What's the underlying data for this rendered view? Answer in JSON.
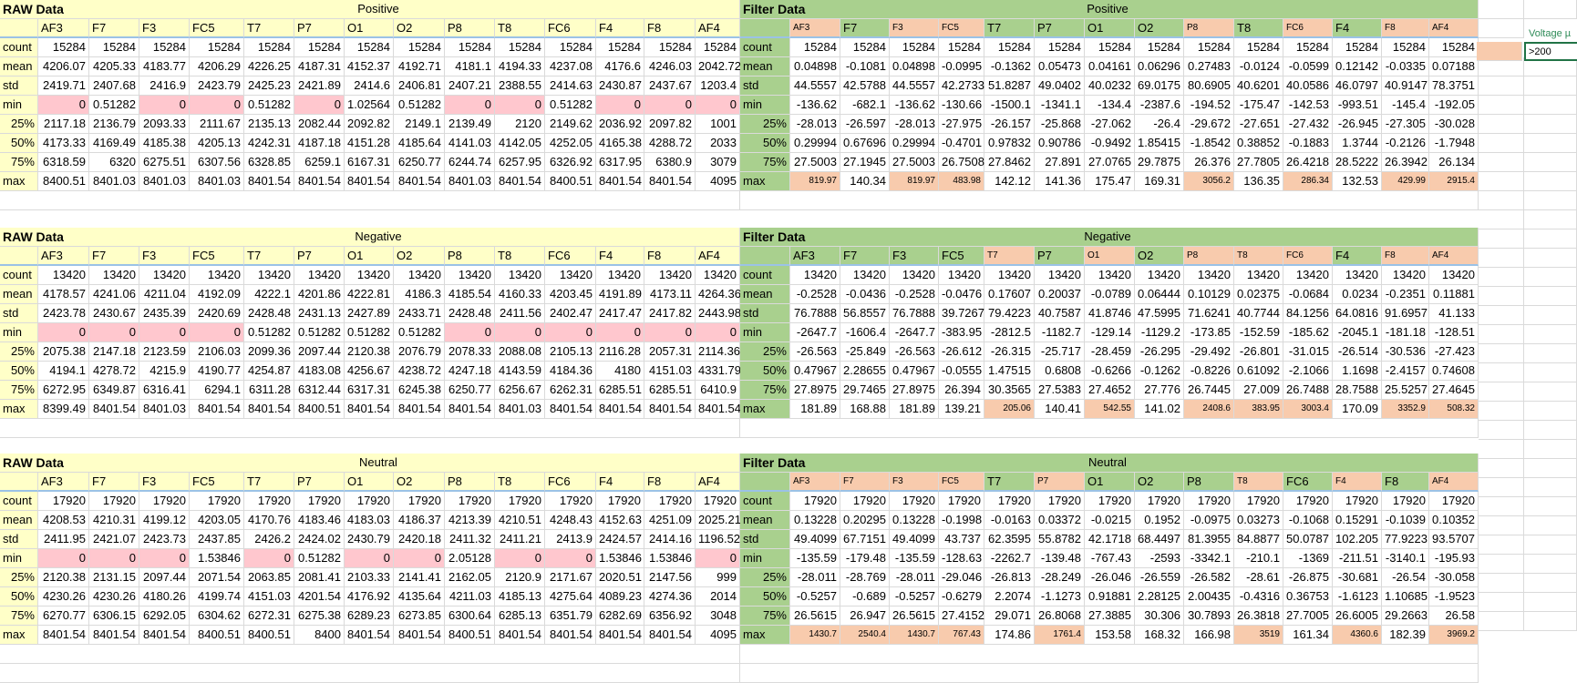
{
  "side_note": {
    "voltage_label": "Voltage µ",
    "voltage_value": ">200"
  },
  "stat_labels": [
    "count",
    "mean",
    "std",
    "min",
    "25%",
    "50%",
    "75%",
    "max"
  ],
  "channels": [
    "AF3",
    "F7",
    "F3",
    "FC5",
    "T7",
    "P7",
    "O1",
    "O2",
    "P8",
    "T8",
    "FC6",
    "F4",
    "F8",
    "AF4"
  ],
  "blocks": [
    {
      "name": "Positive",
      "raw_title": "RAW Data",
      "filter_title": "Filter Data",
      "filter_header_highlight": [
        true,
        false,
        true,
        true,
        false,
        false,
        false,
        false,
        true,
        false,
        true,
        false,
        true,
        true
      ],
      "raw_rows": [
        [
          "15284",
          "15284",
          "15284",
          "15284",
          "15284",
          "15284",
          "15284",
          "15284",
          "15284",
          "15284",
          "15284",
          "15284",
          "15284",
          "15284"
        ],
        [
          "4206.07",
          "4205.33",
          "4183.77",
          "4206.29",
          "4226.25",
          "4187.31",
          "4152.37",
          "4192.71",
          "4181.1",
          "4194.33",
          "4237.08",
          "4176.6",
          "4246.03",
          "2042.72"
        ],
        [
          "2419.71",
          "2407.68",
          "2416.9",
          "2423.79",
          "2425.23",
          "2421.89",
          "2414.6",
          "2406.81",
          "2407.21",
          "2388.55",
          "2414.63",
          "2430.87",
          "2437.67",
          "1203.4"
        ],
        [
          "0",
          "0.51282",
          "0",
          "0",
          "0.51282",
          "0",
          "1.02564",
          "0.51282",
          "0",
          "0",
          "0.51282",
          "0",
          "0",
          "0"
        ],
        [
          "2117.18",
          "2136.79",
          "2093.33",
          "2111.67",
          "2135.13",
          "2082.44",
          "2092.82",
          "2149.1",
          "2139.49",
          "2120",
          "2149.62",
          "2036.92",
          "2097.82",
          "1001"
        ],
        [
          "4173.33",
          "4169.49",
          "4185.38",
          "4205.13",
          "4242.31",
          "4187.18",
          "4151.28",
          "4185.64",
          "4141.03",
          "4142.05",
          "4252.05",
          "4165.38",
          "4288.72",
          "2033"
        ],
        [
          "6318.59",
          "6320",
          "6275.51",
          "6307.56",
          "6328.85",
          "6259.1",
          "6167.31",
          "6250.77",
          "6244.74",
          "6257.95",
          "6326.92",
          "6317.95",
          "6380.9",
          "3079"
        ],
        [
          "8400.51",
          "8401.03",
          "8401.03",
          "8401.03",
          "8401.54",
          "8401.54",
          "8401.54",
          "8401.54",
          "8401.03",
          "8401.54",
          "8400.51",
          "8401.54",
          "8401.54",
          "4095"
        ]
      ],
      "raw_min_pink": [
        true,
        false,
        true,
        true,
        false,
        true,
        false,
        false,
        true,
        true,
        false,
        true,
        true,
        true
      ],
      "filter_rows": [
        [
          "15284",
          "15284",
          "15284",
          "15284",
          "15284",
          "15284",
          "15284",
          "15284",
          "15284",
          "15284",
          "15284",
          "15284",
          "15284",
          "15284"
        ],
        [
          "0.04898",
          "-0.1081",
          "0.04898",
          "-0.0995",
          "-0.1362",
          "0.05473",
          "0.04161",
          "0.06296",
          "0.27483",
          "-0.0124",
          "-0.0599",
          "0.12142",
          "-0.0335",
          "0.07188"
        ],
        [
          "44.5557",
          "42.5788",
          "44.5557",
          "42.2733",
          "51.8287",
          "49.0402",
          "40.0232",
          "69.0175",
          "80.6905",
          "40.6201",
          "40.0586",
          "46.0797",
          "40.9147",
          "78.3751"
        ],
        [
          "-136.62",
          "-682.1",
          "-136.62",
          "-130.66",
          "-1500.1",
          "-1341.1",
          "-134.4",
          "-2387.6",
          "-194.52",
          "-175.47",
          "-142.53",
          "-993.51",
          "-145.4",
          "-192.05"
        ],
        [
          "-28.013",
          "-26.597",
          "-28.013",
          "-27.975",
          "-26.157",
          "-25.868",
          "-27.062",
          "-26.4",
          "-29.672",
          "-27.651",
          "-27.432",
          "-26.945",
          "-27.305",
          "-30.028"
        ],
        [
          "0.29994",
          "0.67696",
          "0.29994",
          "-0.4701",
          "0.97832",
          "0.90786",
          "-0.9492",
          "1.85415",
          "-1.8542",
          "0.38852",
          "-0.1883",
          "1.3744",
          "-0.2126",
          "-1.7948"
        ],
        [
          "27.5003",
          "27.1945",
          "27.5003",
          "26.7508",
          "27.8462",
          "27.891",
          "27.0765",
          "29.7875",
          "26.376",
          "27.7805",
          "26.4218",
          "28.5222",
          "26.3942",
          "26.134"
        ],
        [
          "819.97",
          "140.34",
          "819.97",
          "483.98",
          "142.12",
          "141.36",
          "175.47",
          "169.31",
          "3056.2",
          "136.35",
          "286.34",
          "132.53",
          "429.99",
          "2915.4"
        ]
      ],
      "filter_max_highlight": [
        true,
        false,
        true,
        true,
        false,
        false,
        false,
        false,
        true,
        false,
        true,
        false,
        true,
        true
      ]
    },
    {
      "name": "Negative",
      "raw_title": "RAW Data",
      "filter_title": "Filter Data",
      "filter_header_highlight": [
        false,
        false,
        false,
        false,
        true,
        false,
        true,
        false,
        true,
        true,
        true,
        false,
        true,
        true
      ],
      "raw_rows": [
        [
          "13420",
          "13420",
          "13420",
          "13420",
          "13420",
          "13420",
          "13420",
          "13420",
          "13420",
          "13420",
          "13420",
          "13420",
          "13420",
          "13420"
        ],
        [
          "4178.57",
          "4241.06",
          "4211.04",
          "4192.09",
          "4222.1",
          "4201.86",
          "4222.81",
          "4186.3",
          "4185.54",
          "4160.33",
          "4203.45",
          "4191.89",
          "4173.11",
          "4264.36"
        ],
        [
          "2423.78",
          "2430.67",
          "2435.39",
          "2420.69",
          "2428.48",
          "2431.13",
          "2427.89",
          "2433.71",
          "2428.48",
          "2411.56",
          "2402.47",
          "2417.47",
          "2417.82",
          "2443.98"
        ],
        [
          "0",
          "0",
          "0",
          "0",
          "0.51282",
          "0.51282",
          "0.51282",
          "0.51282",
          "0",
          "0",
          "0",
          "0",
          "0",
          "0"
        ],
        [
          "2075.38",
          "2147.18",
          "2123.59",
          "2106.03",
          "2099.36",
          "2097.44",
          "2120.38",
          "2076.79",
          "2078.33",
          "2088.08",
          "2105.13",
          "2116.28",
          "2057.31",
          "2114.36"
        ],
        [
          "4194.1",
          "4278.72",
          "4215.9",
          "4190.77",
          "4254.87",
          "4183.08",
          "4256.67",
          "4238.72",
          "4247.18",
          "4143.59",
          "4184.36",
          "4180",
          "4151.03",
          "4331.79"
        ],
        [
          "6272.95",
          "6349.87",
          "6316.41",
          "6294.1",
          "6311.28",
          "6312.44",
          "6317.31",
          "6245.38",
          "6250.77",
          "6256.67",
          "6262.31",
          "6285.51",
          "6285.51",
          "6410.9"
        ],
        [
          "8399.49",
          "8401.54",
          "8401.03",
          "8401.54",
          "8401.54",
          "8400.51",
          "8401.54",
          "8401.54",
          "8401.54",
          "8401.03",
          "8401.54",
          "8401.54",
          "8401.54",
          "8401.54"
        ]
      ],
      "raw_min_pink": [
        true,
        true,
        true,
        true,
        false,
        false,
        false,
        false,
        true,
        true,
        true,
        true,
        true,
        true
      ],
      "filter_rows": [
        [
          "13420",
          "13420",
          "13420",
          "13420",
          "13420",
          "13420",
          "13420",
          "13420",
          "13420",
          "13420",
          "13420",
          "13420",
          "13420",
          "13420"
        ],
        [
          "-0.2528",
          "-0.0436",
          "-0.2528",
          "-0.0476",
          "0.17607",
          "0.20037",
          "-0.0789",
          "0.06444",
          "0.10129",
          "0.02375",
          "-0.0684",
          "0.0234",
          "-0.2351",
          "0.11881"
        ],
        [
          "76.7888",
          "56.8557",
          "76.7888",
          "39.7267",
          "79.4223",
          "40.7587",
          "41.8746",
          "47.5995",
          "71.6241",
          "40.7744",
          "84.1256",
          "64.0816",
          "91.6957",
          "41.133"
        ],
        [
          "-2647.7",
          "-1606.4",
          "-2647.7",
          "-383.95",
          "-2812.5",
          "-1182.7",
          "-129.14",
          "-1129.2",
          "-173.85",
          "-152.59",
          "-185.62",
          "-2045.1",
          "-181.18",
          "-128.51"
        ],
        [
          "-26.563",
          "-25.849",
          "-26.563",
          "-26.612",
          "-26.315",
          "-25.717",
          "-28.459",
          "-26.295",
          "-29.492",
          "-26.801",
          "-31.015",
          "-26.514",
          "-30.536",
          "-27.423"
        ],
        [
          "0.47967",
          "2.28655",
          "0.47967",
          "-0.0555",
          "1.47515",
          "0.6808",
          "-0.6266",
          "-0.1262",
          "-0.8226",
          "0.61092",
          "-2.1066",
          "1.1698",
          "-2.4157",
          "0.74608"
        ],
        [
          "27.8975",
          "29.7465",
          "27.8975",
          "26.394",
          "30.3565",
          "27.5383",
          "27.4652",
          "27.776",
          "26.7445",
          "27.009",
          "26.7488",
          "28.7588",
          "25.5257",
          "27.4645"
        ],
        [
          "181.89",
          "168.88",
          "181.89",
          "139.21",
          "205.06",
          "140.41",
          "542.55",
          "141.02",
          "2408.6",
          "383.95",
          "3003.4",
          "170.09",
          "3352.9",
          "508.32"
        ]
      ],
      "filter_max_highlight": [
        false,
        false,
        false,
        false,
        true,
        false,
        true,
        false,
        true,
        true,
        true,
        false,
        true,
        true
      ]
    },
    {
      "name": "Neutral",
      "raw_title": "RAW Data",
      "filter_title": "Filter Data",
      "filter_header_highlight": [
        true,
        true,
        true,
        true,
        false,
        true,
        false,
        false,
        false,
        true,
        false,
        true,
        false,
        true
      ],
      "raw_rows": [
        [
          "17920",
          "17920",
          "17920",
          "17920",
          "17920",
          "17920",
          "17920",
          "17920",
          "17920",
          "17920",
          "17920",
          "17920",
          "17920",
          "17920"
        ],
        [
          "4208.53",
          "4210.31",
          "4199.12",
          "4203.05",
          "4170.76",
          "4183.46",
          "4183.03",
          "4186.37",
          "4213.39",
          "4210.51",
          "4248.43",
          "4152.63",
          "4251.09",
          "2025.21"
        ],
        [
          "2411.95",
          "2421.07",
          "2423.73",
          "2437.85",
          "2426.2",
          "2424.02",
          "2430.79",
          "2420.18",
          "2411.32",
          "2411.21",
          "2413.9",
          "2424.57",
          "2414.16",
          "1196.52"
        ],
        [
          "0",
          "0",
          "0",
          "1.53846",
          "0",
          "0.51282",
          "0",
          "0",
          "2.05128",
          "0",
          "0",
          "1.53846",
          "1.53846",
          "0"
        ],
        [
          "2120.38",
          "2131.15",
          "2097.44",
          "2071.54",
          "2063.85",
          "2081.41",
          "2103.33",
          "2141.41",
          "2162.05",
          "2120.9",
          "2171.67",
          "2020.51",
          "2147.56",
          "999"
        ],
        [
          "4230.26",
          "4230.26",
          "4180.26",
          "4199.74",
          "4151.03",
          "4201.54",
          "4176.92",
          "4135.64",
          "4211.03",
          "4185.13",
          "4275.64",
          "4089.23",
          "4274.36",
          "2014"
        ],
        [
          "6270.77",
          "6306.15",
          "6292.05",
          "6304.62",
          "6272.31",
          "6275.38",
          "6289.23",
          "6273.85",
          "6300.64",
          "6285.13",
          "6351.79",
          "6282.69",
          "6356.92",
          "3048"
        ],
        [
          "8401.54",
          "8401.54",
          "8401.54",
          "8400.51",
          "8400.51",
          "8400",
          "8401.54",
          "8401.54",
          "8400.51",
          "8401.54",
          "8401.54",
          "8401.54",
          "8401.54",
          "4095"
        ]
      ],
      "raw_min_pink": [
        true,
        true,
        true,
        false,
        true,
        false,
        true,
        true,
        false,
        true,
        true,
        false,
        false,
        true
      ],
      "filter_rows": [
        [
          "17920",
          "17920",
          "17920",
          "17920",
          "17920",
          "17920",
          "17920",
          "17920",
          "17920",
          "17920",
          "17920",
          "17920",
          "17920",
          "17920"
        ],
        [
          "0.13228",
          "0.20295",
          "0.13228",
          "-0.1998",
          "-0.0163",
          "0.03372",
          "-0.0215",
          "0.1952",
          "-0.0975",
          "0.03273",
          "-0.1068",
          "0.15291",
          "-0.1039",
          "0.10352"
        ],
        [
          "49.4099",
          "67.7151",
          "49.4099",
          "43.737",
          "62.3595",
          "55.8782",
          "42.1718",
          "68.4497",
          "81.3955",
          "84.8877",
          "50.0787",
          "102.205",
          "77.9223",
          "93.5707"
        ],
        [
          "-135.59",
          "-179.48",
          "-135.59",
          "-128.63",
          "-2262.7",
          "-139.48",
          "-767.43",
          "-2593",
          "-3342.1",
          "-210.1",
          "-1369",
          "-211.51",
          "-3140.1",
          "-195.93"
        ],
        [
          "-28.011",
          "-28.769",
          "-28.011",
          "-29.046",
          "-26.813",
          "-28.249",
          "-26.046",
          "-26.559",
          "-26.582",
          "-28.61",
          "-26.875",
          "-30.681",
          "-26.54",
          "-30.058"
        ],
        [
          "-0.5257",
          "-0.689",
          "-0.5257",
          "-0.6279",
          "2.2074",
          "-1.1273",
          "0.91881",
          "2.28125",
          "2.00435",
          "-0.4316",
          "0.36753",
          "-1.6123",
          "1.10685",
          "-1.9523"
        ],
        [
          "26.5615",
          "26.947",
          "26.5615",
          "27.4152",
          "29.071",
          "26.8068",
          "27.3885",
          "30.306",
          "30.7893",
          "26.3818",
          "27.7005",
          "26.6005",
          "29.2663",
          "26.58"
        ],
        [
          "1430.7",
          "2540.4",
          "1430.7",
          "767.43",
          "174.86",
          "1761.4",
          "153.58",
          "168.32",
          "166.98",
          "3519",
          "161.34",
          "4360.6",
          "182.39",
          "3969.2"
        ]
      ],
      "filter_max_highlight": [
        true,
        true,
        true,
        true,
        false,
        true,
        false,
        false,
        false,
        true,
        false,
        true,
        false,
        true
      ]
    }
  ]
}
